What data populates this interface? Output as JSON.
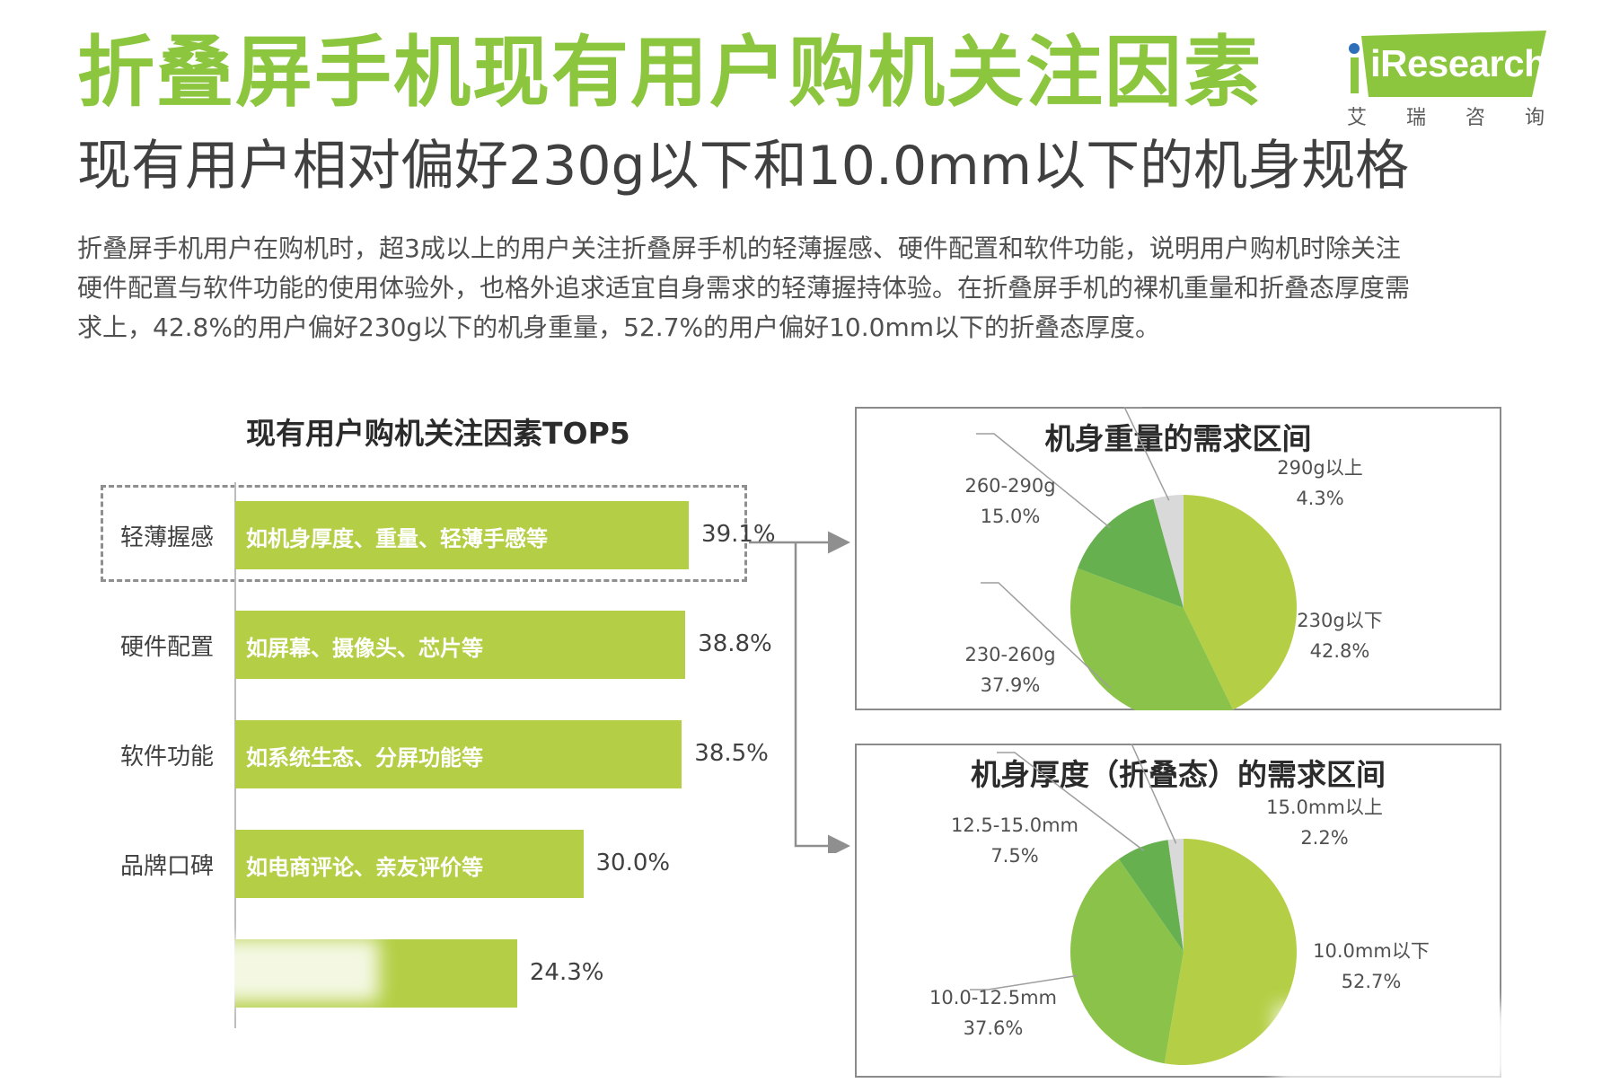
{
  "header": {
    "title": "折叠屏手机现有用户购机关注因素",
    "subtitle": "现有用户相对偏好230g以下和10.0mm以下的机身规格",
    "intro_lines": [
      "折叠屏手机用户在购机时，超3成以上的用户关注折叠屏手机的轻薄握感、硬件配置和软件功能，说明用户购机时除关注",
      "硬件配置与软件功能的使用体验外，也格外追求适宜自身需求的轻薄握持体验。在折叠屏手机的裸机重量和折叠态厚度需",
      "求上，42.8%的用户偏好230g以下的机身重量，52.7%的用户偏好10.0mm以下的折叠态厚度。"
    ]
  },
  "logo": {
    "brand": "iResearch",
    "cn": "艾瑞咨询"
  },
  "colors": {
    "title_green": "#8cc63f",
    "bar": "#b4cf45",
    "pie_light": "#b4cf45",
    "pie_mid": "#8bc34a",
    "pie_dark": "#66b04f",
    "pie_grey": "#d9d9d9"
  },
  "chart_data": [
    {
      "type": "bar",
      "title": "现有用户购机关注因素TOP5",
      "orientation": "horizontal",
      "categories": [
        "轻薄握感",
        "硬件配置",
        "软件功能",
        "品牌口碑",
        ""
      ],
      "descriptions": [
        "如机身厚度、重量、轻薄手感等",
        "如屏幕、摄像头、芯片等",
        "如系统生态、分屏功能等",
        "如电商评论、亲友评价等",
        ""
      ],
      "values": [
        39.1,
        38.8,
        38.5,
        30.0,
        24.3
      ],
      "value_labels": [
        "39.1%",
        "38.8%",
        "38.5%",
        "30.0%",
        "24.3%"
      ],
      "highlight": "轻薄握感",
      "xlim": [
        0,
        48
      ]
    },
    {
      "type": "pie",
      "title": "机身重量的需求区间",
      "slices": [
        {
          "label": "230g以下",
          "value": 42.8,
          "value_label": "42.8%"
        },
        {
          "label": "230-260g",
          "value": 37.9,
          "value_label": "37.9%"
        },
        {
          "label": "260-290g",
          "value": 15.0,
          "value_label": "15.0%"
        },
        {
          "label": "290g以上",
          "value": 4.3,
          "value_label": "4.3%"
        }
      ]
    },
    {
      "type": "pie",
      "title": "机身厚度（折叠态）的需求区间",
      "slices": [
        {
          "label": "10.0mm以下",
          "value": 52.7,
          "value_label": "52.7%"
        },
        {
          "label": "10.0-12.5mm",
          "value": 37.6,
          "value_label": "37.6%"
        },
        {
          "label": "12.5-15.0mm",
          "value": 7.5,
          "value_label": "7.5%"
        },
        {
          "label": "15.0mm以上",
          "value": 2.2,
          "value_label": "2.2%"
        }
      ]
    }
  ]
}
